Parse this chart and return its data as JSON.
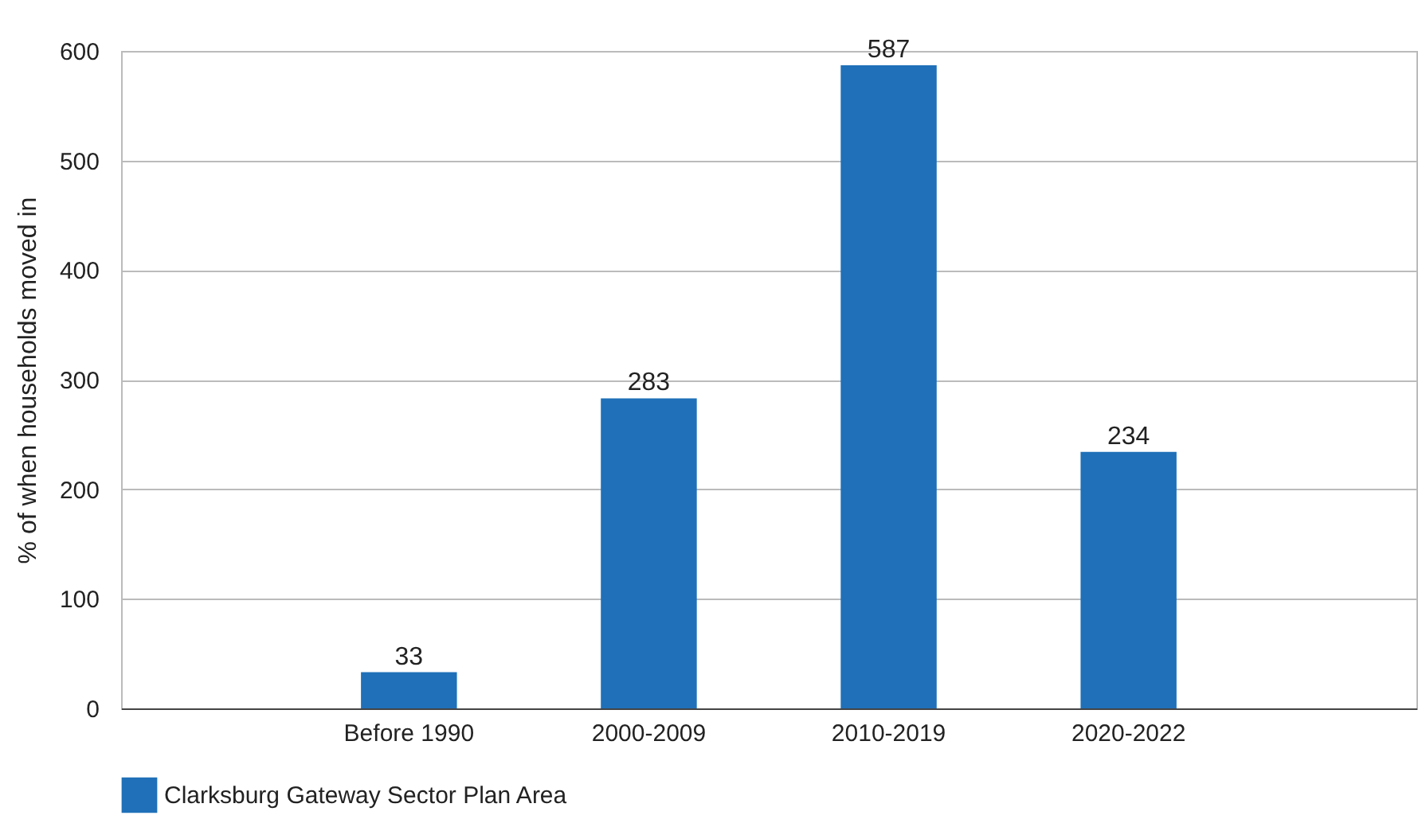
{
  "chart_data": {
    "type": "bar",
    "ylabel": "% of when households moved in",
    "categories": [
      "Before 1990",
      "2000-2009",
      "2010-2019",
      "2020-2022"
    ],
    "series": [
      {
        "name": "Clarksburg Gateway Sector Plan Area",
        "color": "#1f70b8",
        "values": [
          33,
          283,
          587,
          234
        ]
      }
    ],
    "ylim": [
      0,
      600
    ],
    "yticks": [
      0,
      100,
      200,
      300,
      400,
      500,
      600
    ],
    "grid": "y",
    "legend": "bottom",
    "data_labels": true
  }
}
